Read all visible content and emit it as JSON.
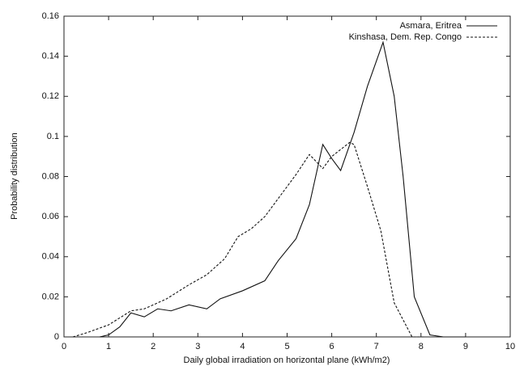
{
  "chart_data": {
    "type": "line",
    "xlabel": "Daily global irradiation on horizontal plane (kWh/m2)",
    "ylabel": "Probability distribution",
    "xlim": [
      0,
      10
    ],
    "xticks": [
      0,
      1,
      2,
      3,
      4,
      5,
      6,
      7,
      8,
      9,
      10
    ],
    "ylim": [
      0,
      0.16
    ],
    "yticks": [
      0,
      0.02,
      0.04,
      0.06,
      0.08,
      0.1,
      0.12,
      0.14,
      0.16
    ],
    "legend": "upper-right",
    "series": [
      {
        "name": "Asmara, Eritrea",
        "color": "#111111",
        "dashed": false,
        "x": [
          0.8,
          1.0,
          1.25,
          1.5,
          1.8,
          2.1,
          2.4,
          2.8,
          3.2,
          3.5,
          4.0,
          4.5,
          4.8,
          5.2,
          5.5,
          5.8,
          6.0,
          6.2,
          6.5,
          6.8,
          7.15,
          7.4,
          7.6,
          7.85,
          8.2,
          8.5,
          9.0
        ],
        "values": [
          0,
          0.001,
          0.005,
          0.012,
          0.01,
          0.014,
          0.013,
          0.016,
          0.014,
          0.019,
          0.023,
          0.028,
          0.038,
          0.049,
          0.066,
          0.096,
          0.089,
          0.083,
          0.102,
          0.125,
          0.147,
          0.12,
          0.08,
          0.02,
          0.001,
          0,
          0
        ]
      },
      {
        "name": "Kinshasa, Dem. Rep. Congo",
        "color": "#111111",
        "dashed": true,
        "x": [
          0.2,
          0.5,
          1.0,
          1.5,
          1.8,
          2.3,
          2.8,
          3.2,
          3.6,
          3.9,
          4.2,
          4.5,
          5.0,
          5.2,
          5.5,
          5.8,
          6.0,
          6.4,
          6.5,
          6.8,
          7.1,
          7.4,
          7.8,
          8.1
        ],
        "values": [
          0,
          0.002,
          0.006,
          0.013,
          0.014,
          0.019,
          0.026,
          0.031,
          0.039,
          0.05,
          0.054,
          0.06,
          0.075,
          0.081,
          0.091,
          0.084,
          0.09,
          0.097,
          0.096,
          0.075,
          0.053,
          0.017,
          0,
          0
        ]
      }
    ]
  }
}
